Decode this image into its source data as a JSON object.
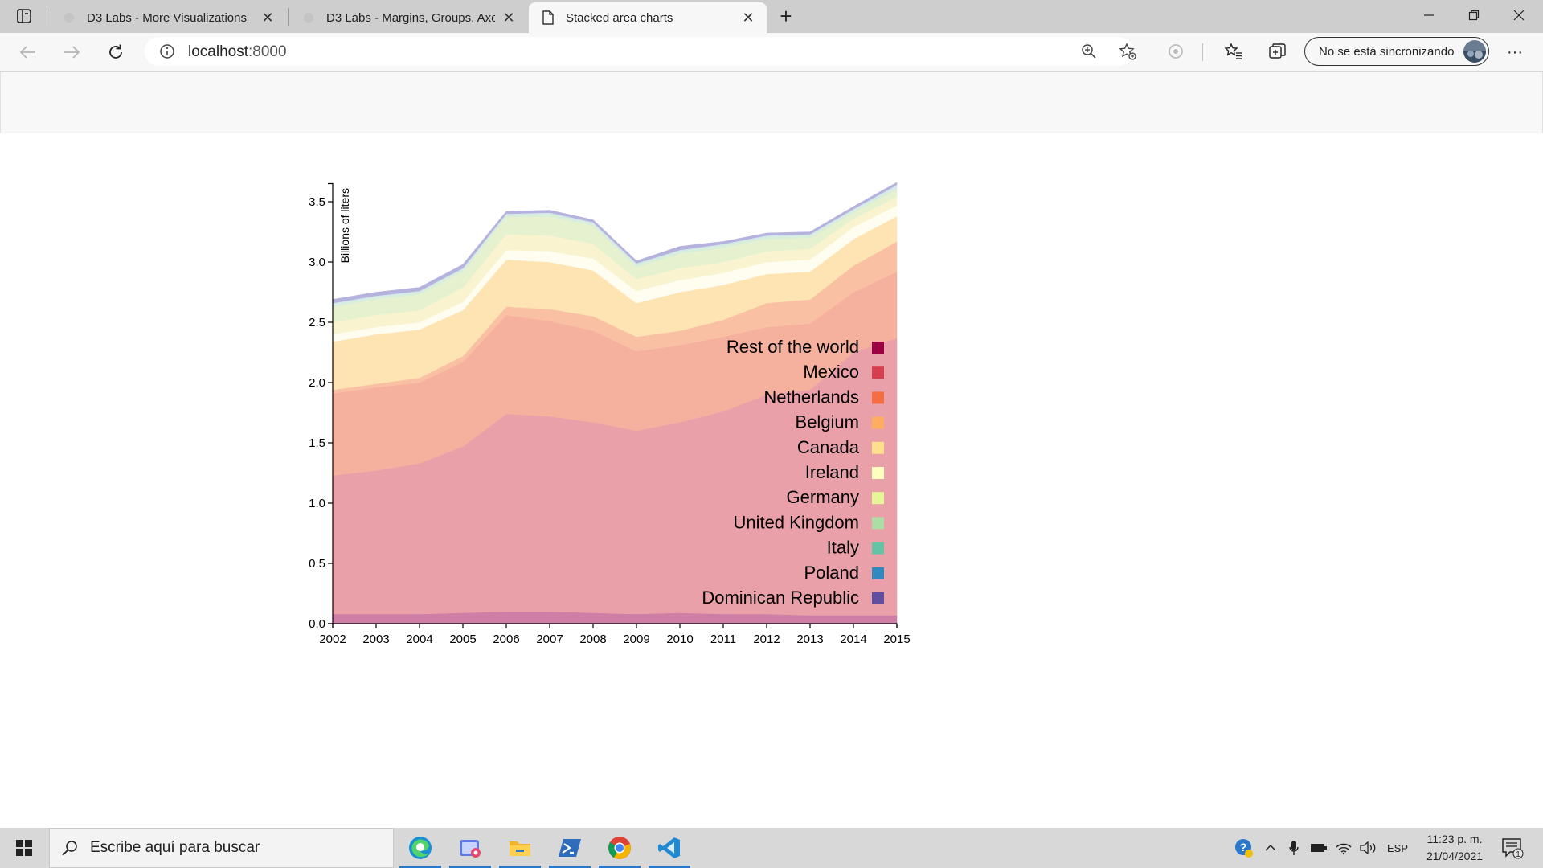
{
  "browser": {
    "tabs": [
      {
        "title": "D3 Labs - More Visualizations",
        "active": false
      },
      {
        "title": "D3 Labs - Margins, Groups, Axes",
        "active": false
      },
      {
        "title": "Stacked area charts",
        "active": true
      }
    ],
    "url_host": "localhost",
    "url_port": ":8000",
    "sync_label": "No se está sincronizando",
    "icons": {
      "tab_actions": "tab-actions-icon",
      "close": "close-icon",
      "new_tab": "plus-icon",
      "back": "back-arrow-icon",
      "forward": "forward-arrow-icon",
      "refresh": "refresh-icon",
      "info": "info-icon",
      "zoom": "zoom-icon",
      "favorite_add": "star-add-icon",
      "extension": "extension-icon",
      "favorites": "favorites-icon",
      "collections": "collections-icon",
      "more": "more-icon"
    }
  },
  "chart_data": {
    "type": "area",
    "stacked": true,
    "ylabel": "Billions of liters",
    "x": [
      2002,
      2003,
      2004,
      2005,
      2006,
      2007,
      2008,
      2009,
      2010,
      2011,
      2012,
      2013,
      2014,
      2015
    ],
    "yticks": [
      "0.0",
      "0.5",
      "1.0",
      "1.5",
      "2.0",
      "2.5",
      "3.0",
      "3.5"
    ],
    "ylim": [
      0,
      3.65
    ],
    "legend_position": "bottom-right",
    "series": [
      {
        "name": "Dominican Republic",
        "legend_color": "#5e4fa2",
        "fill": "#cf7fa6",
        "values": [
          0.08,
          0.08,
          0.08,
          0.09,
          0.1,
          0.1,
          0.09,
          0.08,
          0.09,
          0.08,
          0.08,
          0.07,
          0.07,
          0.07
        ]
      },
      {
        "name": "Poland",
        "legend_color": "#3288bd",
        "fill": "#e9a0a8",
        "values": [
          1.15,
          1.19,
          1.25,
          1.38,
          1.64,
          1.62,
          1.58,
          1.52,
          1.58,
          1.68,
          1.82,
          1.87,
          2.18,
          2.3
        ]
      },
      {
        "name": "Italy",
        "legend_color": "#66c2a5",
        "fill": "#f6b09e",
        "values": [
          0.68,
          0.69,
          0.67,
          0.7,
          0.82,
          0.79,
          0.76,
          0.66,
          0.64,
          0.62,
          0.56,
          0.55,
          0.5,
          0.55
        ]
      },
      {
        "name": "United Kingdom",
        "legend_color": "#abdda4",
        "fill": "#f9c0a4",
        "values": [
          0.03,
          0.03,
          0.04,
          0.05,
          0.07,
          0.1,
          0.12,
          0.12,
          0.12,
          0.14,
          0.2,
          0.2,
          0.22,
          0.25
        ]
      },
      {
        "name": "Germany",
        "legend_color": "#e6f598",
        "fill": "#fde4b2",
        "values": [
          0.4,
          0.41,
          0.4,
          0.38,
          0.39,
          0.39,
          0.38,
          0.28,
          0.32,
          0.29,
          0.24,
          0.23,
          0.22,
          0.21
        ]
      },
      {
        "name": "Ireland",
        "legend_color": "#ffffbf",
        "fill": "#fffcf0",
        "values": [
          0.06,
          0.06,
          0.06,
          0.07,
          0.08,
          0.09,
          0.1,
          0.1,
          0.1,
          0.1,
          0.1,
          0.1,
          0.1,
          0.09
        ]
      },
      {
        "name": "Canada",
        "legend_color": "#fee08b",
        "fill": "#f9f4cf",
        "values": [
          0.1,
          0.1,
          0.1,
          0.12,
          0.13,
          0.13,
          0.12,
          0.1,
          0.1,
          0.09,
          0.09,
          0.09,
          0.07,
          0.07
        ]
      },
      {
        "name": "Belgium",
        "legend_color": "#fdae61",
        "fill": "#e6f1d0",
        "values": [
          0.13,
          0.13,
          0.13,
          0.13,
          0.14,
          0.16,
          0.15,
          0.1,
          0.12,
          0.12,
          0.1,
          0.09,
          0.05,
          0.06
        ]
      },
      {
        "name": "Netherlands",
        "legend_color": "#f46d43",
        "fill": "#d9eedb",
        "values": [
          0.02,
          0.02,
          0.02,
          0.02,
          0.02,
          0.02,
          0.02,
          0.02,
          0.02,
          0.02,
          0.02,
          0.02,
          0.02,
          0.02
        ]
      },
      {
        "name": "Mexico",
        "legend_color": "#d53e4f",
        "fill": "#d4e8eb",
        "values": [
          0.01,
          0.01,
          0.01,
          0.01,
          0.01,
          0.01,
          0.01,
          0.01,
          0.01,
          0.01,
          0.01,
          0.01,
          0.01,
          0.02
        ]
      },
      {
        "name": "Rest of the world",
        "legend_color": "#9e0142",
        "fill": "#b5b3de",
        "values": [
          0.03,
          0.03,
          0.03,
          0.03,
          0.02,
          0.02,
          0.02,
          0.02,
          0.03,
          0.02,
          0.02,
          0.02,
          0.02,
          0.02
        ]
      }
    ]
  },
  "taskbar": {
    "search_placeholder": "Escribe aquí para buscar",
    "language": "ESP",
    "time": "11:23 p. m.",
    "date": "21/04/2021",
    "notification_count": "1",
    "icons": {
      "start": "windows-start-icon",
      "search": "search-icon",
      "apps": [
        "edge-icon",
        "snip-icon",
        "file-explorer-icon",
        "powershell-icon",
        "chrome-icon",
        "vscode-icon"
      ],
      "tray": [
        "help-icon",
        "chevron-up-icon",
        "microphone-icon",
        "battery-icon",
        "wifi-icon",
        "volume-icon"
      ],
      "notifications": "notifications-icon"
    }
  }
}
